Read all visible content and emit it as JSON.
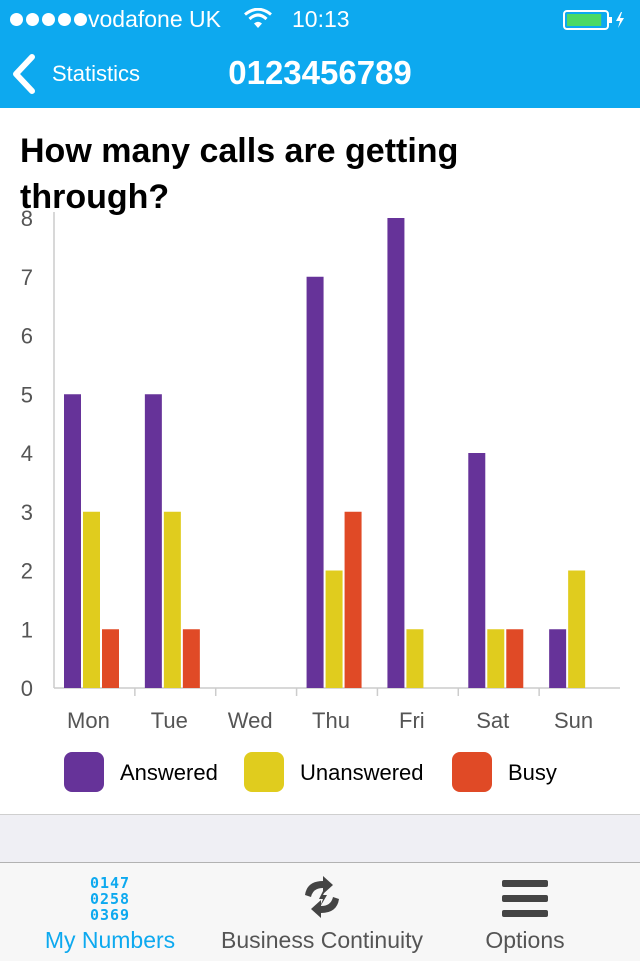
{
  "status_bar": {
    "carrier": "vodafone UK",
    "time": "10:13",
    "signal_bars": 5,
    "battery_level": 0.9
  },
  "nav": {
    "back_label": "Statistics",
    "title": "0123456789"
  },
  "chart_data": {
    "type": "bar",
    "title": "How many calls are getting through?",
    "categories": [
      "Mon",
      "Tue",
      "Wed",
      "Thu",
      "Fri",
      "Sat",
      "Sun"
    ],
    "series": [
      {
        "name": "Answered",
        "color": "#663399",
        "values": [
          5,
          5,
          0,
          7,
          8,
          4,
          1
        ]
      },
      {
        "name": "Unanswered",
        "color": "#e0cc1e",
        "values": [
          3,
          3,
          0,
          2,
          1,
          1,
          2
        ]
      },
      {
        "name": "Busy",
        "color": "#e04a26",
        "values": [
          1,
          1,
          0,
          3,
          0,
          1,
          0
        ]
      }
    ],
    "yticks": [
      "0",
      "1",
      "2",
      "3",
      "4",
      "5",
      "6",
      "7",
      "8"
    ],
    "ylim": [
      0,
      8
    ],
    "legend_position": "bottom",
    "grid": false
  },
  "tabs": [
    {
      "label": "My  Numbers",
      "icon": "number-grid-icon",
      "digits": [
        "0147",
        "0258",
        "0369"
      ],
      "active": true
    },
    {
      "label": "Business  Continuity",
      "icon": "continuity-arrows-icon",
      "active": false
    },
    {
      "label": "Options",
      "icon": "menu-icon",
      "active": false
    }
  ]
}
